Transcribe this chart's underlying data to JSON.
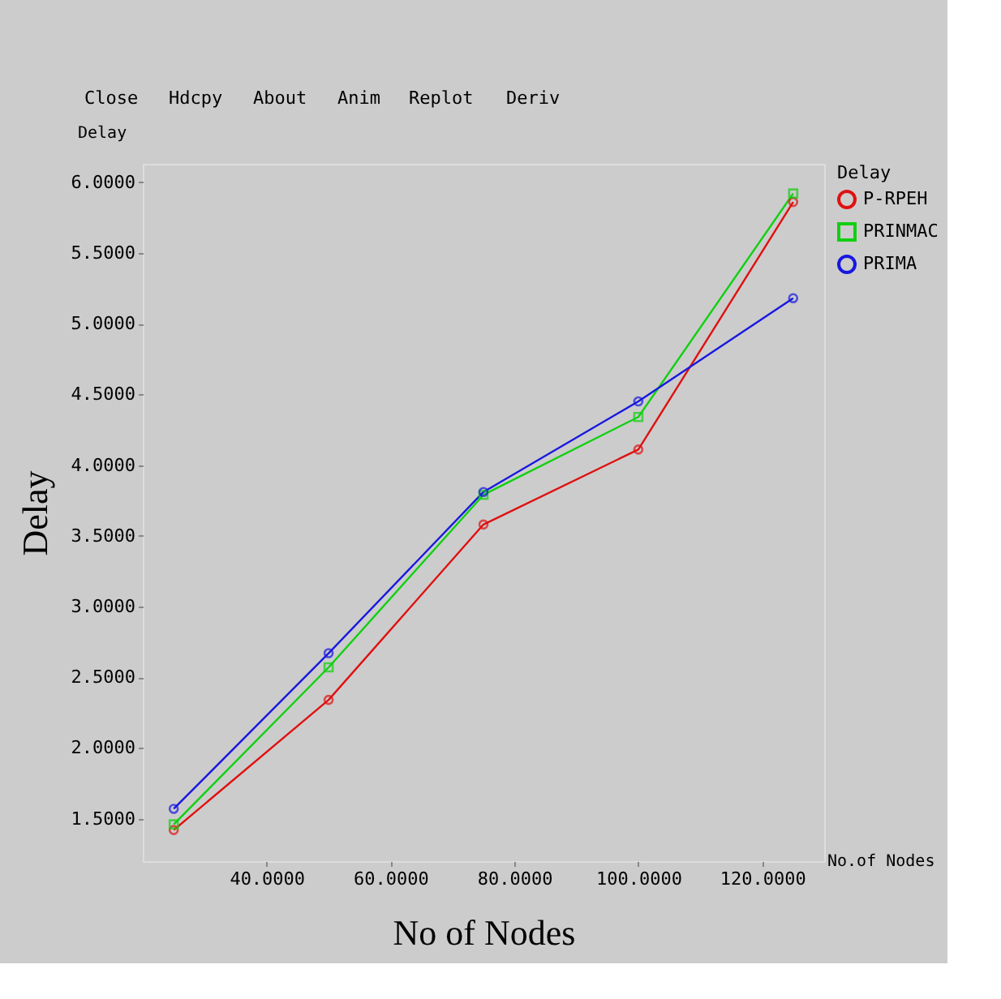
{
  "chart_data": {
    "type": "line",
    "xlabel": "No of  Nodes",
    "ylabel": "Delay",
    "legend_title": "Delay",
    "annotations": [
      "Close",
      "Hdcpy",
      "About",
      "Anim",
      "Replot",
      "Deriv",
      "Delay",
      "No.of Nodes"
    ],
    "x": [
      25,
      50,
      75,
      100,
      125
    ],
    "series": [
      {
        "name": "P-RPEH",
        "color": "#e01010",
        "marker": "circle",
        "values": [
          1.42,
          2.34,
          3.58,
          4.11,
          5.86
        ]
      },
      {
        "name": "PRINMAC",
        "color": "#10d010",
        "marker": "square",
        "values": [
          1.46,
          2.57,
          3.79,
          4.34,
          5.92
        ]
      },
      {
        "name": "PRIMA",
        "color": "#1818e0",
        "marker": "circle",
        "values": [
          1.57,
          2.67,
          3.81,
          4.45,
          5.18
        ]
      }
    ],
    "xlim": [
      20,
      130
    ],
    "ylim": [
      1.2,
      6.13
    ],
    "xticks": [
      {
        "value": 40,
        "label": "40.0000"
      },
      {
        "value": 60,
        "label": "60.0000"
      },
      {
        "value": 80,
        "label": "80.0000"
      },
      {
        "value": 100,
        "label": "100.0000"
      },
      {
        "value": 120,
        "label": "120.0000"
      }
    ],
    "yticks": [
      {
        "value": 1.5,
        "label": "1.5000"
      },
      {
        "value": 2,
        "label": "2.0000"
      },
      {
        "value": 2.5,
        "label": "2.5000"
      },
      {
        "value": 3,
        "label": "3.0000"
      },
      {
        "value": 3.5,
        "label": "3.5000"
      },
      {
        "value": 4,
        "label": "4.0000"
      },
      {
        "value": 4.5,
        "label": "4.5000"
      },
      {
        "value": 5,
        "label": "5.0000"
      },
      {
        "value": 5.5,
        "label": "5.5000"
      },
      {
        "value": 6,
        "label": "6.0000"
      }
    ],
    "grid": false,
    "legend": "top right",
    "line_style": "solid"
  }
}
